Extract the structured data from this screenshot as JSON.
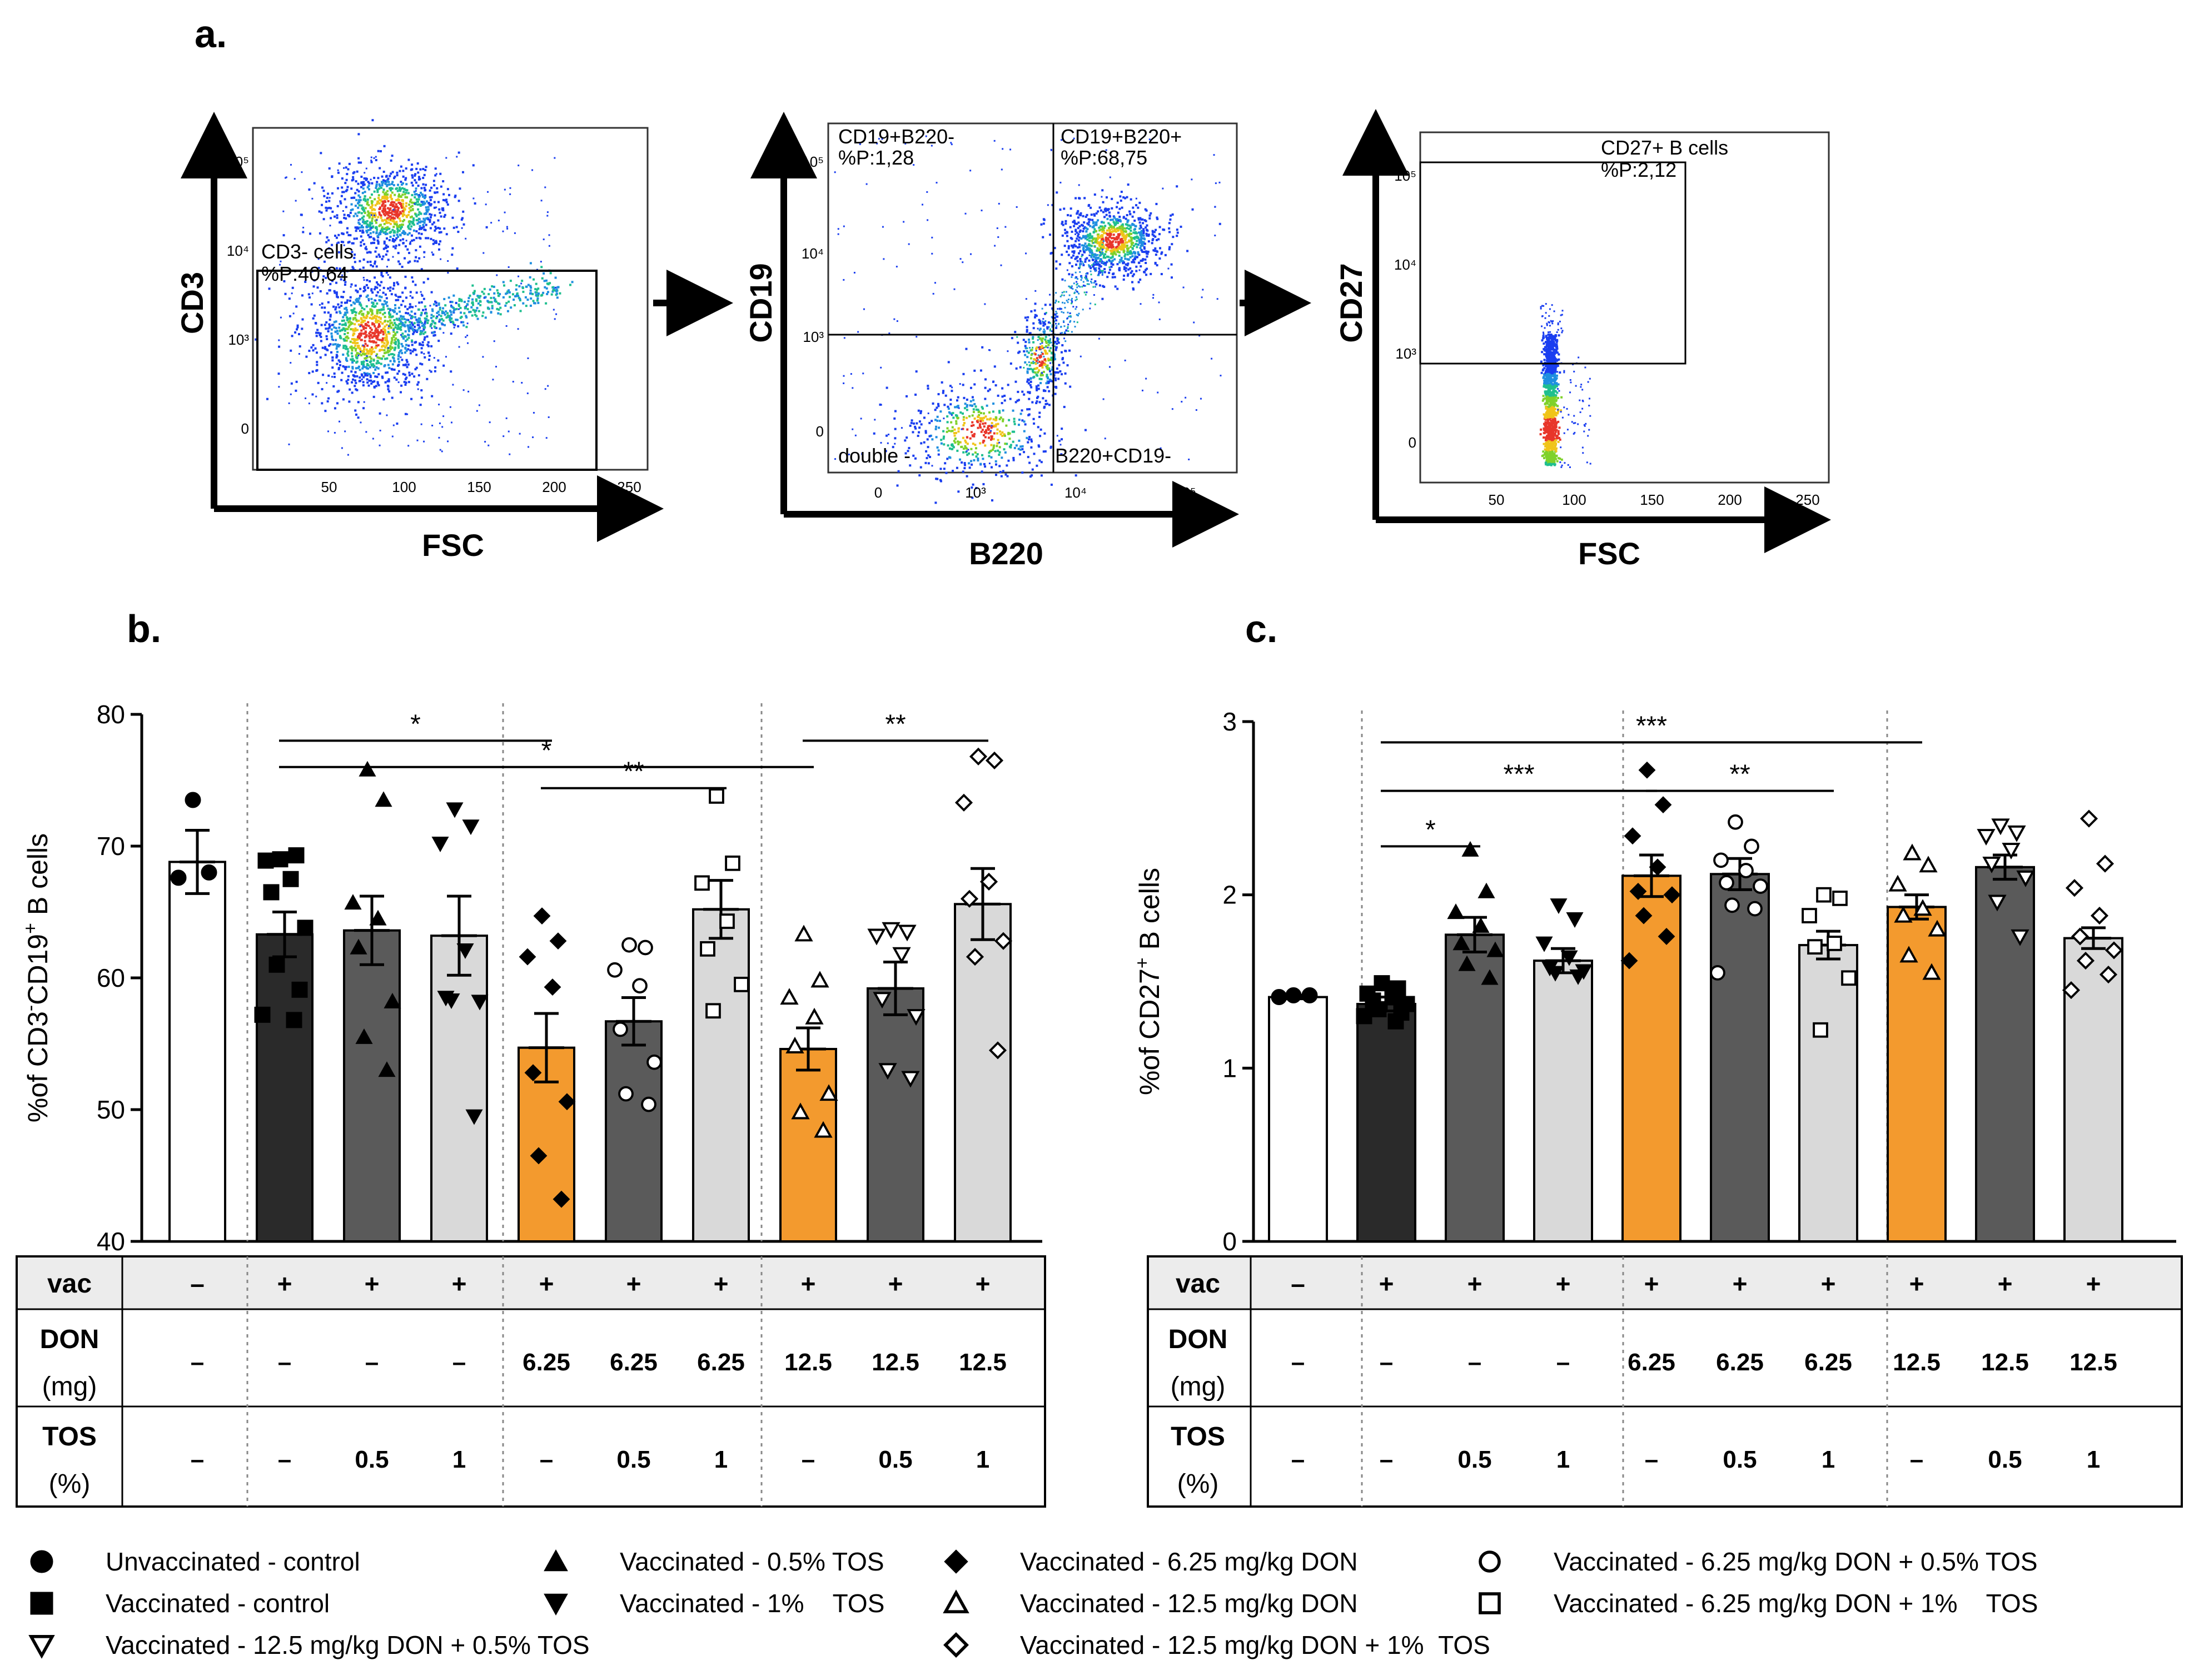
{
  "panel_labels": [
    "a.",
    "b.",
    "c."
  ],
  "flow": {
    "plots": [
      {
        "xlabel": "FSC",
        "ylabel": "CD3",
        "yticks": [
          "10⁵",
          "10⁴",
          "10³",
          "0"
        ],
        "xticks": [
          "50",
          "100",
          "150",
          "200",
          "250"
        ],
        "gate_label_1": "CD3- cells",
        "gate_label_2": "%P:40,64"
      },
      {
        "xlabel": "B220",
        "ylabel": "CD19",
        "yticks": [
          "10⁵",
          "10⁴",
          "10³",
          "0"
        ],
        "xticks": [
          "0",
          "10³",
          "10⁴",
          "10⁵"
        ],
        "q_tl_1": "CD19+B220-",
        "q_tl_2": "%P:1,28",
        "q_tr_1": "CD19+B220+",
        "q_tr_2": "%P:68,75",
        "q_bl": "double -",
        "q_br": "B220+CD19-"
      },
      {
        "xlabel": "FSC",
        "ylabel": "CD27",
        "yticks": [
          "10⁵",
          "10⁴",
          "10³",
          "0"
        ],
        "xticks": [
          "50",
          "100",
          "150",
          "200",
          "250"
        ],
        "gate_label_1": "CD27+ B cells",
        "gate_label_2": "%P:2,12"
      }
    ]
  },
  "table": {
    "row_labels": {
      "vac": "vac",
      "don": "DON",
      "don_unit": "(mg)",
      "tos": "TOS",
      "tos_unit": "(%)"
    },
    "vac": [
      "–",
      "+",
      "+",
      "+",
      "+",
      "+",
      "+",
      "+",
      "+",
      "+"
    ],
    "don": [
      "–",
      "–",
      "–",
      "–",
      "6.25",
      "6.25",
      "6.25",
      "12.5",
      "12.5",
      "12.5"
    ],
    "tos": [
      "–",
      "–",
      "0.5",
      "1",
      "–",
      "0.5",
      "1",
      "–",
      "0.5",
      "1"
    ]
  },
  "colors": {
    "white": "#ffffff",
    "black": "#2a2a2a",
    "darkgray": "#5a5a5a",
    "lightgray": "#d9d9d9",
    "orange": "#f39a2e",
    "header": "#ececec"
  },
  "chart_data": [
    {
      "type": "bar",
      "panel": "b.",
      "ylabel_pre": "%of CD3",
      "ylabel_sup1": "-",
      "ylabel_mid": "CD19",
      "ylabel_sup2": "+",
      "ylabel_post": " B cells",
      "ylim": [
        40,
        80
      ],
      "yticks": [
        "40",
        "50",
        "60",
        "70",
        "80"
      ],
      "fills": [
        "white",
        "black",
        "darkgray",
        "lightgray",
        "orange",
        "darkgray",
        "lightgray",
        "orange",
        "darkgray",
        "lightgray"
      ],
      "markers": [
        "circle",
        "square",
        "tri_up",
        "tri_down",
        "diamond",
        "circle_open",
        "square_open",
        "tri_up_open",
        "tri_down_open",
        "diamond_open"
      ],
      "means": [
        68.8,
        63.3,
        63.6,
        63.2,
        54.7,
        56.7,
        65.2,
        54.6,
        59.2,
        65.6
      ],
      "sems": [
        2.4,
        1.7,
        2.6,
        3.0,
        2.6,
        1.8,
        2.2,
        1.6,
        2.0,
        2.7
      ],
      "points": [
        [
          73.5,
          68.0,
          67.6
        ],
        [
          69.0,
          69.3,
          68.9,
          67.5,
          66.5,
          63.8,
          61.0,
          59.1,
          57.2,
          56.8
        ],
        [
          75.8,
          73.5,
          65.7,
          64.5,
          62.3,
          58.2,
          55.5,
          53.0
        ],
        [
          72.8,
          71.5,
          70.2,
          62.1,
          58.5,
          58.2,
          58.3,
          49.5
        ],
        [
          64.7,
          62.8,
          61.6,
          59.3,
          52.8,
          50.6,
          46.5,
          43.2
        ],
        [
          62.5,
          62.3,
          60.6,
          59.4,
          56.1,
          53.6,
          51.2,
          50.4
        ],
        [
          73.8,
          68.7,
          67.2,
          64.3,
          62.2,
          59.5,
          57.5
        ],
        [
          63.3,
          59.8,
          58.5,
          57.0,
          54.8,
          51.2,
          49.8,
          48.4
        ],
        [
          63.7,
          63.5,
          63.2,
          61.8,
          58.4,
          57.1,
          53.0,
          52.4
        ],
        [
          76.8,
          76.5,
          73.3,
          67.3,
          66.0,
          62.8,
          61.6,
          54.5
        ]
      ],
      "sig": [
        {
          "from": 1,
          "to": 4,
          "label": "*",
          "y": 78.0
        },
        {
          "from": 1,
          "to": 7,
          "label": "*",
          "y": 76.0
        },
        {
          "from": 4,
          "to": 6,
          "label": "**",
          "y": 74.4
        },
        {
          "from": 7,
          "to": 9,
          "label": "**",
          "y": 78.0
        }
      ]
    },
    {
      "type": "bar",
      "panel": "c.",
      "ylabel_pre": "%of CD27",
      "ylabel_sup1": "+",
      "ylabel_mid": "",
      "ylabel_sup2": "",
      "ylabel_post": " B cells",
      "ylim": [
        0,
        3
      ],
      "yticks": [
        "0",
        "1",
        "2",
        "3"
      ],
      "fills": [
        "white",
        "black",
        "darkgray",
        "lightgray",
        "orange",
        "darkgray",
        "lightgray",
        "orange",
        "darkgray",
        "lightgray"
      ],
      "markers": [
        "circle",
        "square",
        "tri_up",
        "tri_down",
        "diamond",
        "circle_open",
        "square_open",
        "tri_up_open",
        "tri_down_open",
        "diamond_open"
      ],
      "means": [
        1.41,
        1.37,
        1.77,
        1.62,
        2.11,
        2.12,
        1.71,
        1.93,
        2.16,
        1.75
      ],
      "sems": [
        0.01,
        0.04,
        0.1,
        0.07,
        0.12,
        0.09,
        0.08,
        0.07,
        0.07,
        0.06
      ],
      "points": [
        [
          1.42,
          1.42,
          1.41
        ],
        [
          1.49,
          1.46,
          1.43,
          1.41,
          1.39,
          1.37,
          1.34,
          1.32,
          1.3,
          1.27
        ],
        [
          2.26,
          2.02,
          1.9,
          1.82,
          1.72,
          1.68,
          1.6,
          1.52
        ],
        [
          1.94,
          1.86,
          1.72,
          1.64,
          1.58,
          1.56,
          1.55,
          1.53
        ],
        [
          2.72,
          2.52,
          2.34,
          2.16,
          2.02,
          2.0,
          1.88,
          1.76,
          1.62
        ],
        [
          2.42,
          2.28,
          2.2,
          2.14,
          2.07,
          2.05,
          1.94,
          1.92,
          1.55
        ],
        [
          2.0,
          1.98,
          1.88,
          1.72,
          1.7,
          1.52,
          1.22
        ],
        [
          2.24,
          2.17,
          2.06,
          1.92,
          1.88,
          1.8,
          1.65,
          1.55
        ],
        [
          2.4,
          2.36,
          2.34,
          2.26,
          2.18,
          2.1,
          1.96,
          1.76
        ],
        [
          2.44,
          2.18,
          2.04,
          1.88,
          1.76,
          1.68,
          1.62,
          1.54,
          1.45
        ]
      ],
      "sig": [
        {
          "from": 1,
          "to": 7,
          "label": "***",
          "y": 2.88
        },
        {
          "from": 1,
          "to": 4,
          "label": "***",
          "y": 2.6
        },
        {
          "from": 4,
          "to": 6,
          "label": "**",
          "y": 2.6
        },
        {
          "from": 1,
          "to": 2,
          "label": "*",
          "y": 2.28
        }
      ]
    }
  ],
  "legend": [
    {
      "marker": "circle",
      "label": "Unvaccinated - control"
    },
    {
      "marker": "tri_up",
      "label": "Vaccinated - 0.5% TOS"
    },
    {
      "marker": "diamond",
      "label": "Vaccinated - 6.25 mg/kg DON"
    },
    {
      "marker": "circle_open",
      "label": "Vaccinated - 6.25 mg/kg DON + 0.5% TOS"
    },
    {
      "marker": "square",
      "label": "Vaccinated - control"
    },
    {
      "marker": "tri_down",
      "label": "Vaccinated - 1%    TOS"
    },
    {
      "marker": "tri_up_open",
      "label": "Vaccinated - 12.5 mg/kg DON"
    },
    {
      "marker": "square_open",
      "label": "Vaccinated - 6.25 mg/kg DON + 1%    TOS"
    },
    {
      "marker": "tri_down_open",
      "label": "Vaccinated - 12.5 mg/kg DON + 0.5% TOS"
    },
    {
      "marker": "diamond_open",
      "label": "Vaccinated - 12.5 mg/kg DON + 1%  TOS"
    }
  ]
}
